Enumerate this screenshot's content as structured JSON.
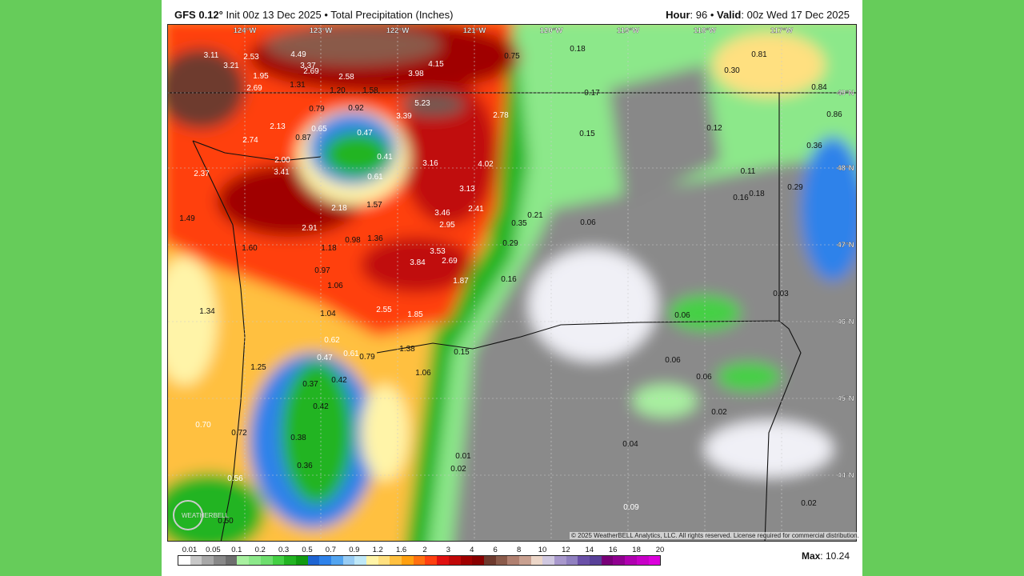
{
  "header": {
    "model": "GFS 0.12",
    "init": "Init 00z 13 Dec 2025",
    "product": "Total Precipitation (Inches)",
    "hour_label": "Hour",
    "hour": "96",
    "valid_label": "Valid",
    "valid": "00z Wed 17 Dec 2025"
  },
  "map": {
    "longitudes": [
      "124°W",
      "123°W",
      "122°W",
      "121°W",
      "120°W",
      "119°W",
      "118°W",
      "117°W"
    ],
    "latitudes": [
      "49°N",
      "48°N",
      "47°N",
      "46°N",
      "45°N",
      "44°N"
    ],
    "values": [
      "3.11",
      "2.53",
      "4.49",
      "3.21",
      "3.37",
      "2.69",
      "4.15",
      "3.98",
      "1.95",
      "2.58",
      "2.69",
      "1.31",
      "1.20",
      "1.58",
      "0.75",
      "0.18",
      "0.81",
      "0.30",
      "0.84",
      "0.17",
      "0.86",
      "5.23",
      "0.79",
      "0.92",
      "2.78",
      "3.39",
      "2.13",
      "0.65",
      "0.47",
      "0.87",
      "0.15",
      "0.12",
      "2.74",
      "0.36",
      "0.41",
      "2.00",
      "3.16",
      "4.02",
      "0.11",
      "2.37",
      "3.41",
      "0.61",
      "0.29",
      "0.16",
      "0.18",
      "3.13",
      "1.57",
      "2.18",
      "2.41",
      "3.46",
      "0.21",
      "1.49",
      "0.06",
      "0.35",
      "2.95",
      "2.91",
      "1.36",
      "0.98",
      "0.29",
      "1.60",
      "1.18",
      "3.53",
      "3.84",
      "2.69",
      "0.97",
      "0.16",
      "1.87",
      "1.06",
      "0.03",
      "1.34",
      "1.04",
      "2.55",
      "1.85",
      "0.06",
      "0.62",
      "0.61",
      "0.79",
      "1.38",
      "0.15",
      "0.47",
      "0.06",
      "1.25",
      "1.06",
      "0.06",
      "0.37",
      "0.42",
      "0.42",
      "0.02",
      "0.70",
      "0.72",
      "0.38",
      "0.04",
      "0.01",
      "0.36",
      "0.02",
      "0.56",
      "0.02",
      "0.09",
      "0.50"
    ],
    "copyright": "© 2025 WeatherBELL Analytics, LLC. All rights reserved. License required for commercial distribution.",
    "logo": "WeatherBELL"
  },
  "legend": {
    "labels": [
      "0.01",
      "0.05",
      "0.1",
      "0.2",
      "0.3",
      "0.5",
      "0.7",
      "0.9",
      "1.2",
      "1.6",
      "2",
      "3",
      "4",
      "6",
      "8",
      "10",
      "12",
      "14",
      "16",
      "18",
      "20"
    ],
    "colors": [
      "#ffffff",
      "#c8c8c8",
      "#a8a8a8",
      "#888888",
      "#6e6e6e",
      "#a8f0a0",
      "#8ce88a",
      "#6ede6e",
      "#44d044",
      "#22b422",
      "#119a11",
      "#1e64d2",
      "#2e82ea",
      "#52a4f0",
      "#98ccf4",
      "#bfe8f8",
      "#fff4a8",
      "#ffe080",
      "#ffc040",
      "#ffa010",
      "#ff7010",
      "#ff4010",
      "#e01010",
      "#c00808",
      "#a00000",
      "#880000",
      "#6e3a2e",
      "#8a5a4a",
      "#b08070",
      "#c8a090",
      "#ecd6c8",
      "#d0c8e0",
      "#a898cc",
      "#9080c0",
      "#6a50a8",
      "#584098",
      "#780078",
      "#900090",
      "#b000b0",
      "#c800c8",
      "#dc00dc"
    ],
    "max_label": "Max",
    "max": "10.24"
  }
}
